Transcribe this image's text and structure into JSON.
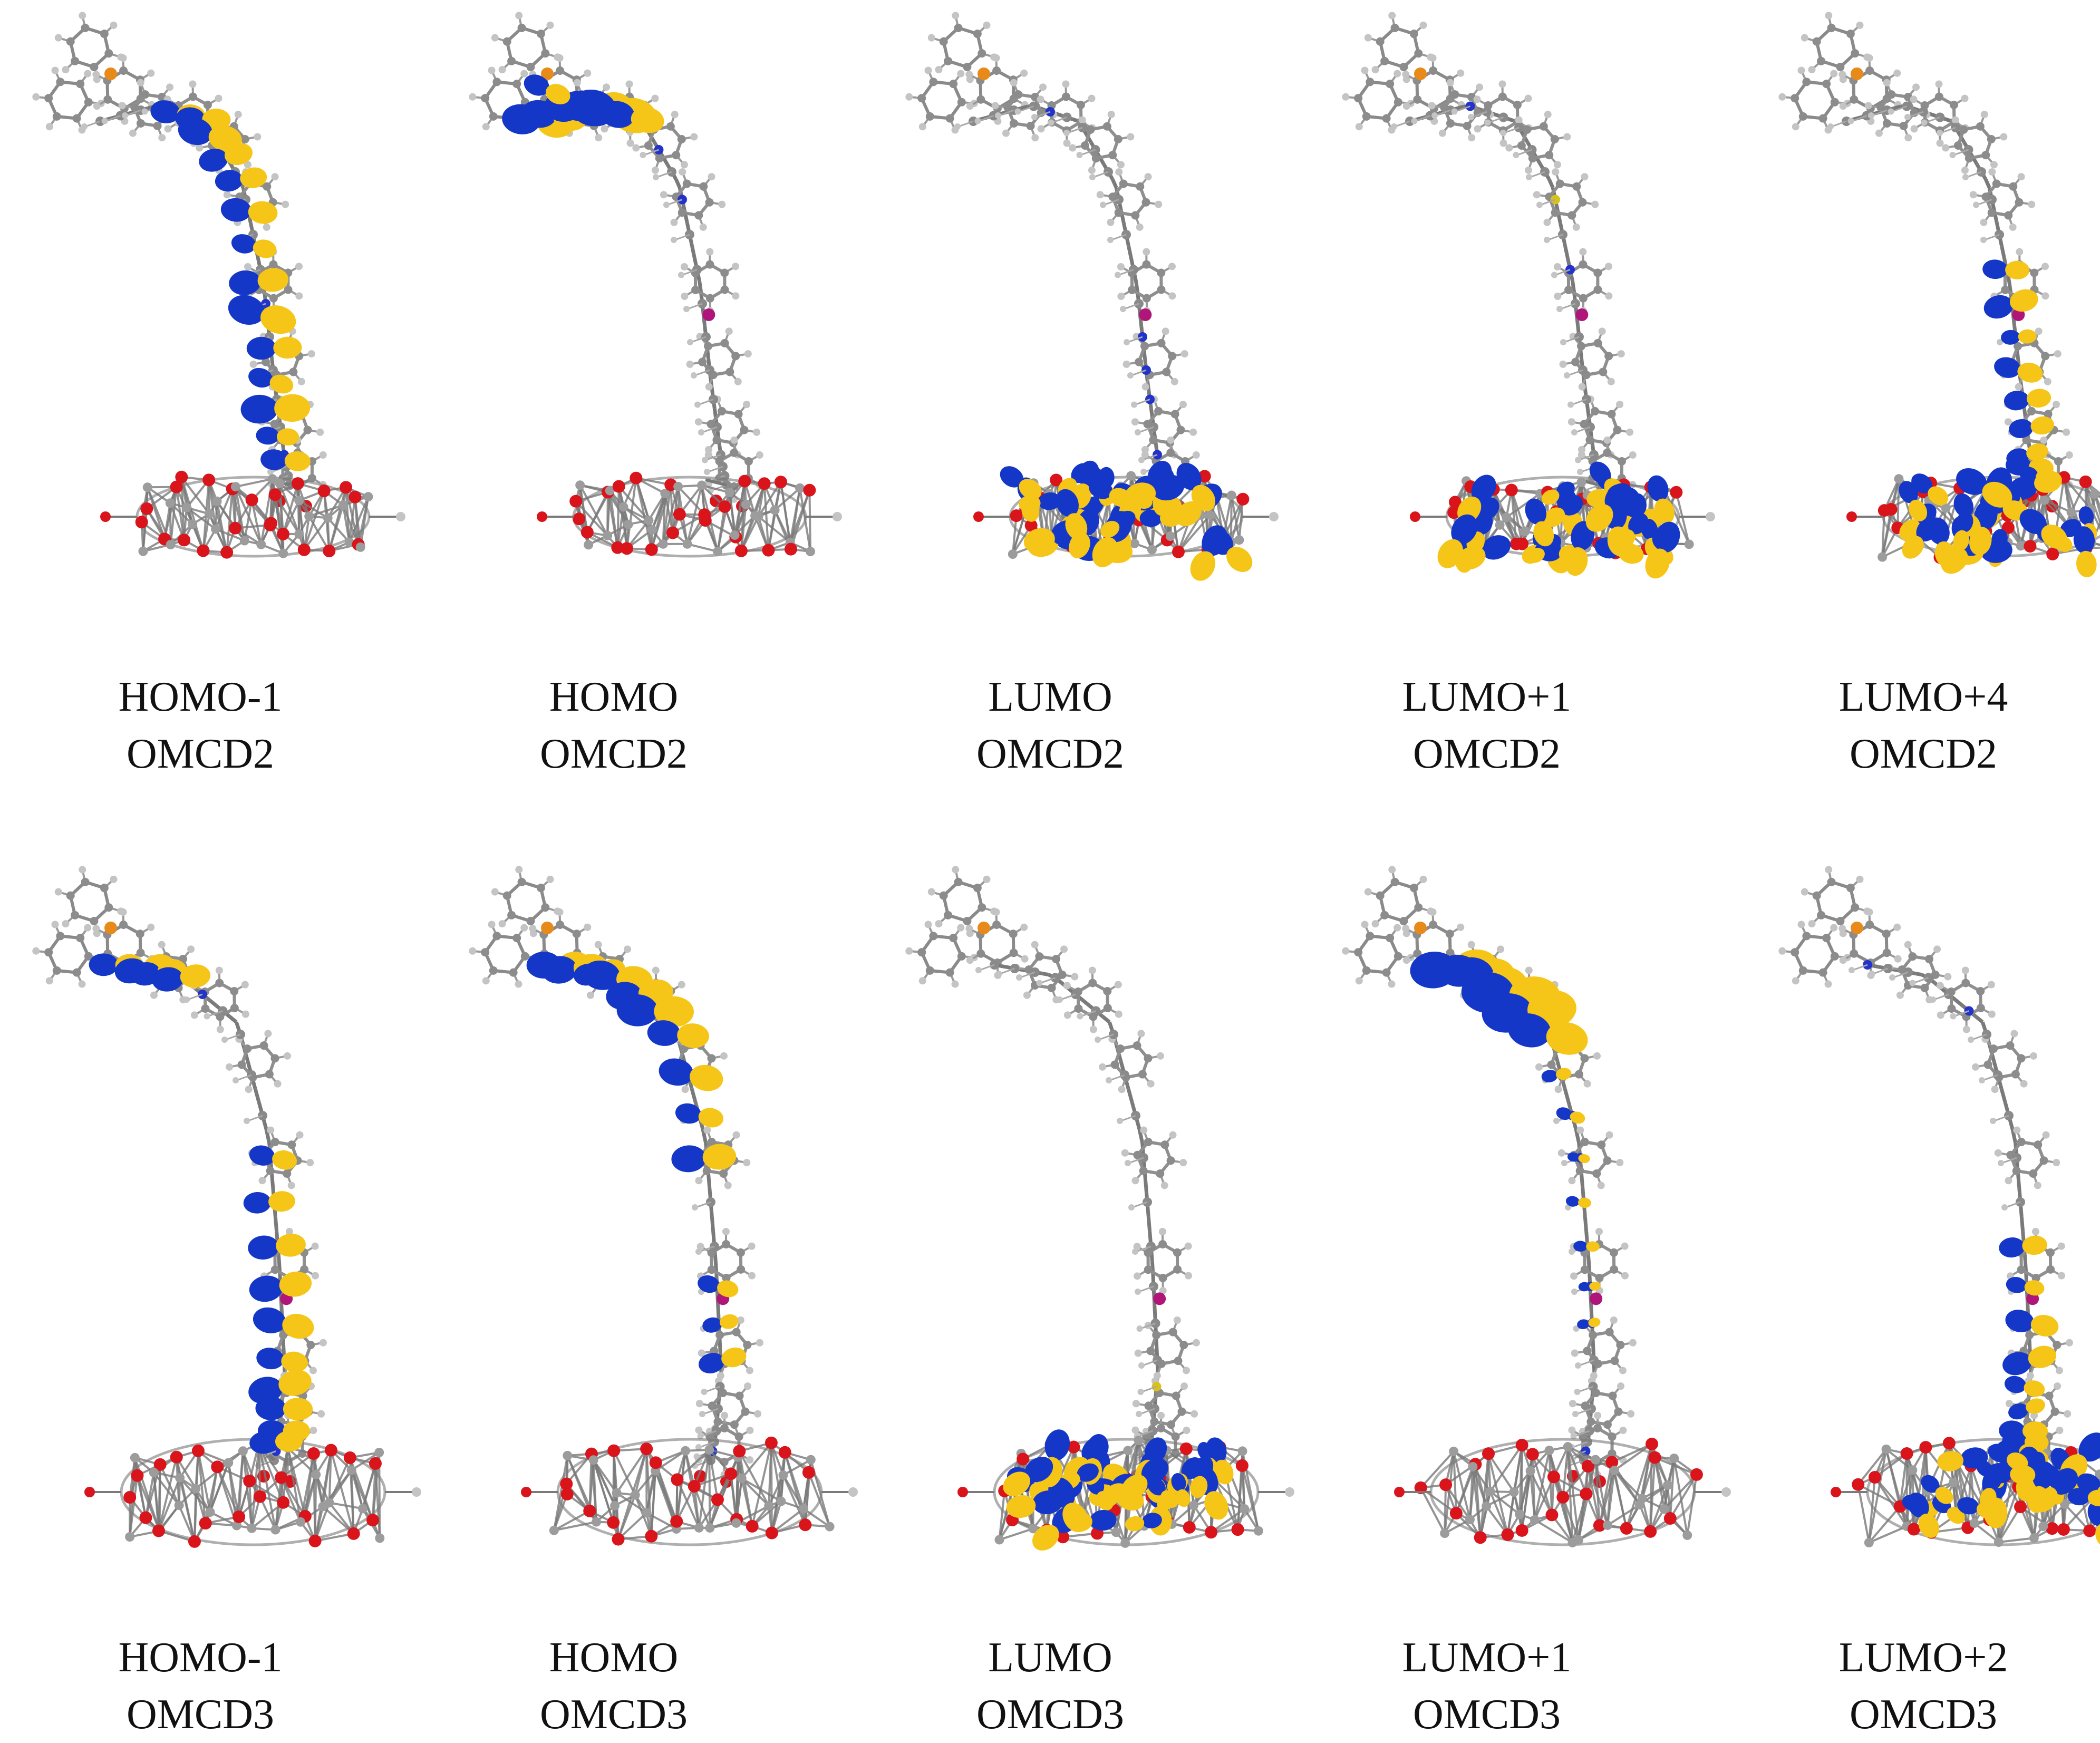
{
  "colors": {
    "positive_lobe": "#F5C518",
    "negative_lobe": "#1537C8",
    "bond": "#7a7a7a",
    "oxygen": "#d9141b",
    "nitrogen": "#2233cc",
    "sulfur": "#d8c21a",
    "metal": "#b0157a",
    "hydrogen": "#c4c4c4",
    "phosphorus": "#e88a1a"
  },
  "rows": [
    {
      "panels": [
        {
          "orbital": "HOMO-1",
          "system": "OMCD2",
          "lobes": "backbone-middle"
        },
        {
          "orbital": "HOMO",
          "system": "OMCD2",
          "lobes": "donor-top"
        },
        {
          "orbital": "LUMO",
          "system": "OMCD2",
          "lobes": "cluster"
        },
        {
          "orbital": "LUMO+1",
          "system": "OMCD2",
          "lobes": "cluster"
        },
        {
          "orbital": "LUMO+4",
          "system": "OMCD2",
          "lobes": "anchor-cluster"
        }
      ]
    },
    {
      "panels": [
        {
          "orbital": "HOMO-1",
          "system": "OMCD3",
          "lobes": "full-chain"
        },
        {
          "orbital": "HOMO",
          "system": "OMCD3",
          "lobes": "upper-chain"
        },
        {
          "orbital": "LUMO",
          "system": "OMCD3",
          "lobes": "cluster"
        },
        {
          "orbital": "LUMO+1",
          "system": "OMCD3",
          "lobes": "acceptor-upper"
        },
        {
          "orbital": "LUMO+2",
          "system": "OMCD3",
          "lobes": "anchor-cluster"
        }
      ]
    }
  ]
}
